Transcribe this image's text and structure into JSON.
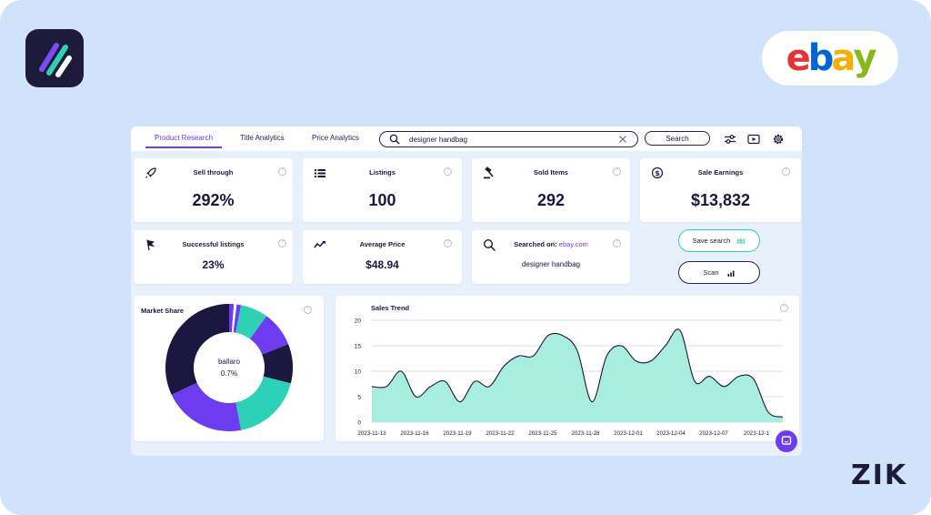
{
  "brand": {
    "ebay_letters": [
      "e",
      "b",
      "a",
      "y"
    ],
    "zik": "ZIK"
  },
  "colors": {
    "accent": "#6c3cf0",
    "teal": "#2ed1b6",
    "navy": "#1c1741",
    "trend_fill": "#a8eede",
    "ebay_e": "#e53238",
    "ebay_b": "#0064d2",
    "ebay_a": "#f5af02",
    "ebay_y": "#86b817"
  },
  "tabs": [
    {
      "label": "Product Research",
      "active": true
    },
    {
      "label": "Title Analytics",
      "active": false
    },
    {
      "label": "Price Analytics",
      "active": false
    }
  ],
  "search": {
    "value": "designer handbag",
    "button_label": "Search"
  },
  "toolbar_icons": [
    "sliders-icon",
    "play-video-icon",
    "gear-icon"
  ],
  "metrics": {
    "sell_through": {
      "label": "Sell through",
      "value": "292%"
    },
    "listings": {
      "label": "Listings",
      "value": "100"
    },
    "sold_items": {
      "label": "Sold Items",
      "value": "292"
    },
    "sale_earnings": {
      "label": "Sale Earnings",
      "value": "$13,832"
    },
    "successful_listings": {
      "label": "Successful listings",
      "value": "23%"
    },
    "average_price": {
      "label": "Average Price",
      "value": "$48.94"
    },
    "searched_on": {
      "label": "Searched on:",
      "site": "ebay.com",
      "query": "designer handbag"
    }
  },
  "actions": {
    "save_search": "Save search",
    "scan": "Scan"
  },
  "market_share": {
    "title": "Market Share",
    "center_name": "ballaro",
    "center_value": "0.7%",
    "slices": [
      {
        "value": 1.2,
        "color": "#6c3cf0"
      },
      {
        "value": 0.7,
        "color": "#ffffff"
      },
      {
        "value": 1.1,
        "color": "#6c3cf0"
      },
      {
        "value": 7.0,
        "color": "#2ed1b6"
      },
      {
        "value": 9.0,
        "color": "#6c3cf0"
      },
      {
        "value": 10.0,
        "color": "#1c1741"
      },
      {
        "value": 18.0,
        "color": "#2ed1b6"
      },
      {
        "value": 21.0,
        "color": "#6c3cf0"
      },
      {
        "value": 32.0,
        "color": "#1c1741"
      }
    ]
  },
  "chart_data": {
    "type": "area",
    "title": "Sales Trend",
    "ylim": [
      0,
      20
    ],
    "yticks": [
      "20",
      "15",
      "10",
      "5",
      "0"
    ],
    "grid": true,
    "x_tick_labels": [
      "2023-11-13",
      "2023-11-16",
      "2023-11-19",
      "2023-11-22",
      "2023-11-25",
      "2023-11-28",
      "2023-12-01",
      "2023-12-04",
      "2023-12-07",
      "2023-12-1"
    ],
    "values": [
      7,
      7,
      10,
      5,
      7,
      8,
      4,
      8,
      7,
      11,
      13,
      13,
      17,
      17,
      14,
      4,
      13,
      15,
      12,
      12,
      15,
      18,
      8,
      9,
      7,
      9,
      8.5,
      2,
      1
    ]
  }
}
